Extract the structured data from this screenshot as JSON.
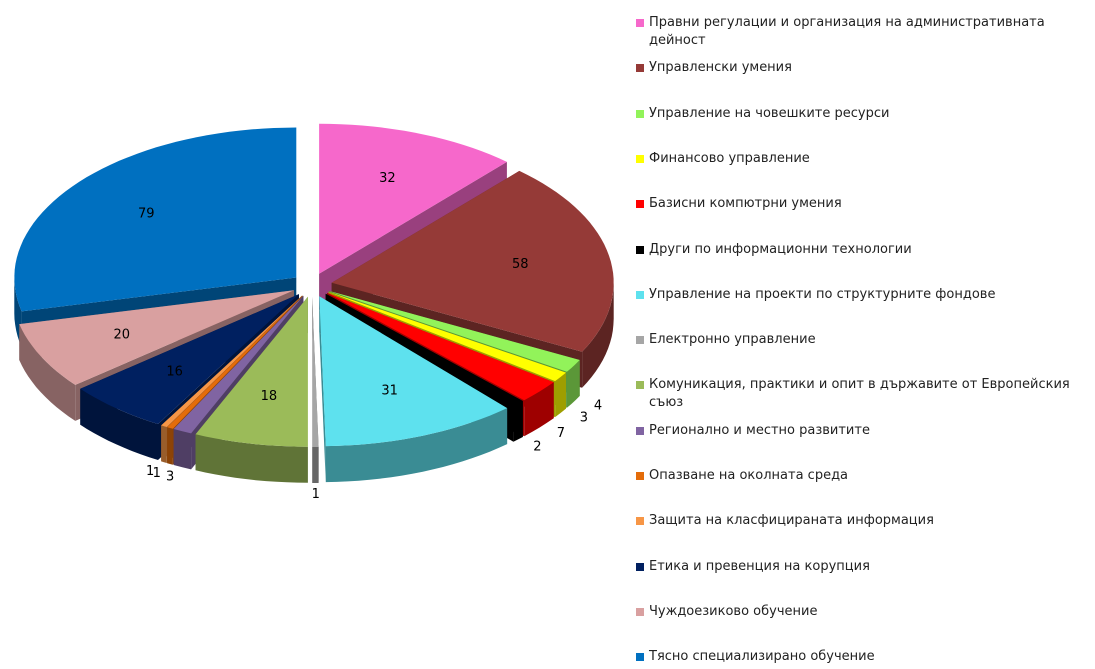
{
  "chart_data": {
    "type": "pie",
    "categories": [
      "Правни регулации и организация на административната дейност",
      "Управленски умения",
      "Управление на човешките ресурси",
      "Финансово управление",
      "Базисни компютрни  умения",
      "Други по информационни технологии",
      "Управление на проекти по структурните фондове",
      "Електронно управление",
      "Комуникация, практики  и опит в държавите от Европейския съюз",
      "Регионално и местно развитите",
      "Опазване на околната среда",
      "Защита на класфицираната  информация",
      "Етика и превенция на корупция",
      "Чуждоезиково обучение",
      "Тясно специализирано обучение"
    ],
    "values": [
      32,
      58,
      4,
      3,
      7,
      2,
      31,
      1,
      18,
      3,
      1,
      1,
      16,
      20,
      79
    ],
    "colors": [
      "#f668cb",
      "#953a37",
      "#92f35a",
      "#ffff00",
      "#ff0000",
      "#000000",
      "#5ee1ee",
      "#a6a6a6",
      "#9bbb59",
      "#8064a2",
      "#e46c0a",
      "#f79646",
      "#002060",
      "#d9a0a0",
      "#0070c0"
    ],
    "legend": "right"
  }
}
